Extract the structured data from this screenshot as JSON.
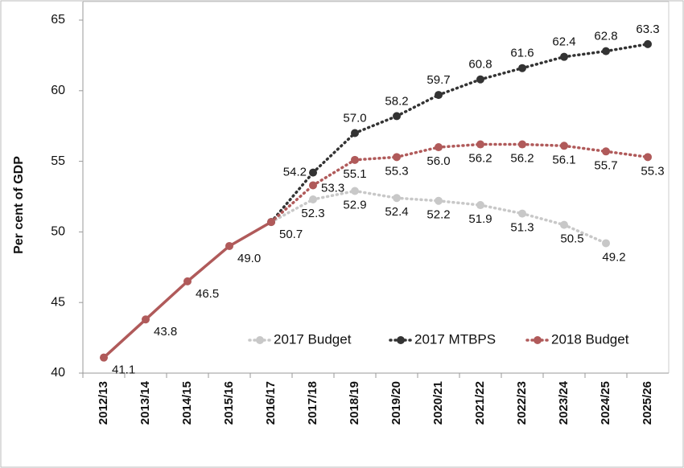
{
  "chart_data": {
    "type": "line",
    "y_label": "Per cent of GDP",
    "categories": [
      "2012/13",
      "2013/14",
      "2014/15",
      "2015/16",
      "2016/17",
      "2017/18",
      "2018/19",
      "2019/20",
      "2020/21",
      "2021/22",
      "2022/23",
      "2023/24",
      "2024/25",
      "2025/26"
    ],
    "series": [
      {
        "name": "2017 Budget",
        "color": "#c8c8c8",
        "values": [
          null,
          null,
          null,
          null,
          50.7,
          52.3,
          52.9,
          52.4,
          52.2,
          51.9,
          51.3,
          50.5,
          49.2,
          null
        ],
        "value_labels": [
          null,
          null,
          null,
          null,
          null,
          "52.3",
          "52.9",
          "52.4",
          "52.2",
          "51.9",
          "51.3",
          "50.5",
          "49.2",
          null
        ]
      },
      {
        "name": "2017 MTBPS",
        "color": "#333333",
        "values": [
          null,
          null,
          null,
          null,
          50.7,
          54.2,
          57.0,
          58.2,
          59.7,
          60.8,
          61.6,
          62.4,
          62.8,
          63.3
        ],
        "value_labels": [
          null,
          null,
          null,
          null,
          null,
          "54.2",
          "57.0",
          "58.2",
          "59.7",
          "60.8",
          "61.6",
          "62.4",
          "62.8",
          "63.3"
        ]
      },
      {
        "name": "2018 Budget",
        "color": "#b05a5a",
        "values": [
          41.1,
          43.8,
          46.5,
          49.0,
          50.7,
          53.3,
          55.1,
          55.3,
          56.0,
          56.2,
          56.2,
          56.1,
          55.7,
          55.3
        ],
        "value_labels": [
          "41.1",
          "43.8",
          "46.5",
          "49.0",
          "50.7",
          "53.3",
          "55.1",
          "55.3",
          "56.0",
          "56.2",
          "56.2",
          "56.1",
          "55.7",
          "55.3"
        ]
      }
    ],
    "ylim": [
      40,
      65
    ],
    "yticks": [
      40,
      45,
      50,
      55,
      60,
      65
    ],
    "legend": "bottom-center",
    "grid": false
  }
}
